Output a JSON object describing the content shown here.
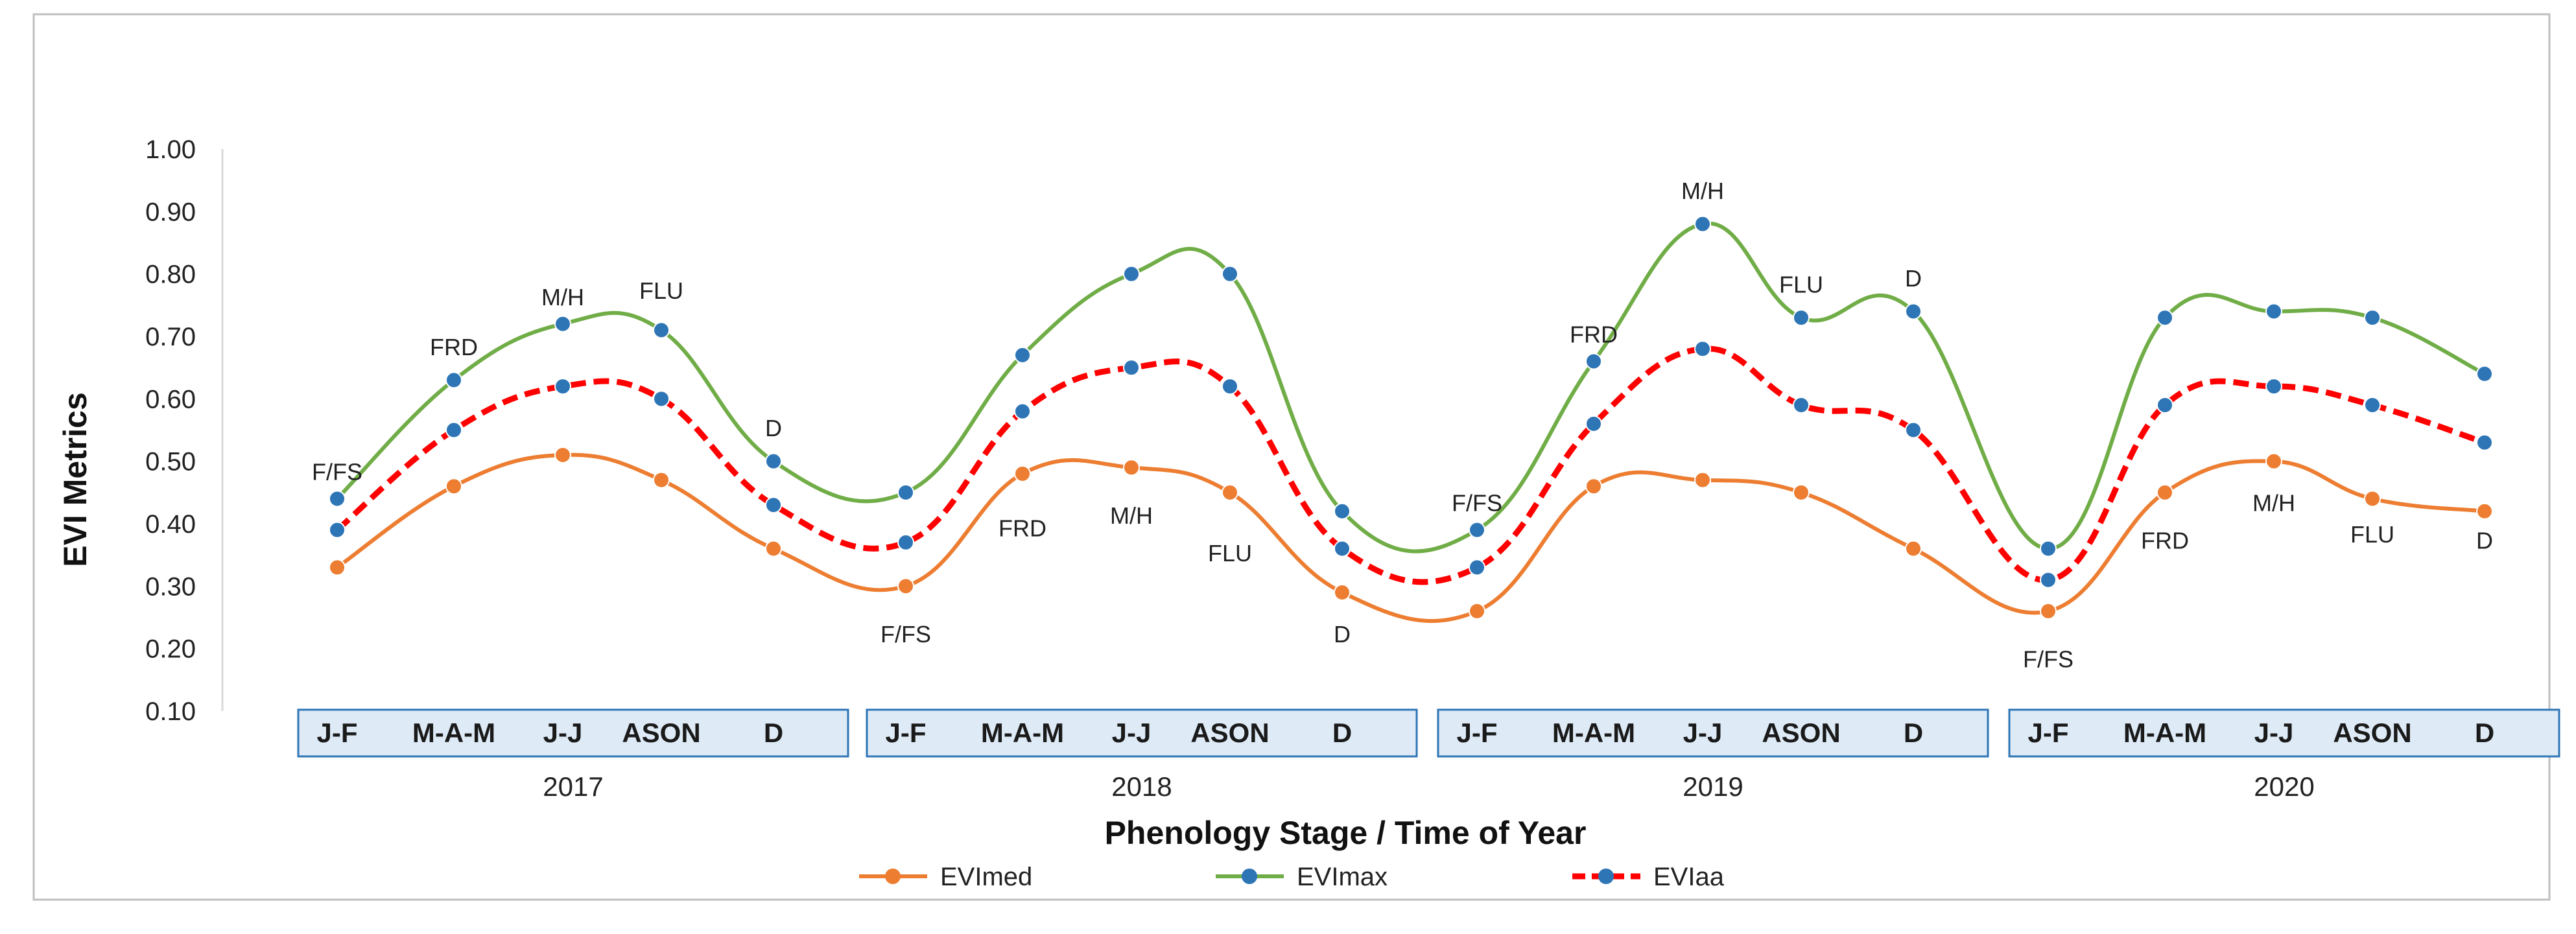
{
  "chart_data": {
    "type": "line",
    "title": "",
    "xlabel": "Phenology Stage / Time of Year",
    "ylabel": "EVI Metrics",
    "ylim": [
      0.1,
      1.0
    ],
    "yticks": [
      "0.10",
      "0.20",
      "0.30",
      "0.40",
      "0.50",
      "0.60",
      "0.70",
      "0.80",
      "0.90",
      "1.00"
    ],
    "grid": false,
    "legend_position": "bottom",
    "years": [
      {
        "year": "2017",
        "months": [
          "J-F",
          "M-A-M",
          "J-J",
          "ASON",
          "D"
        ]
      },
      {
        "year": "2018",
        "months": [
          "J-F",
          "M-A-M",
          "J-J",
          "ASON",
          "D"
        ]
      },
      {
        "year": "2019",
        "months": [
          "J-F",
          "M-A-M",
          "J-J",
          "ASON",
          "D"
        ]
      },
      {
        "year": "2020",
        "months": [
          "J-F",
          "M-A-M",
          "J-J",
          "ASON",
          "D"
        ]
      }
    ],
    "series": [
      {
        "name": "EVImed",
        "color": "#ED7D31",
        "style": "solid",
        "values": [
          0.33,
          0.46,
          0.51,
          0.47,
          0.36,
          0.3,
          0.48,
          0.49,
          0.45,
          0.29,
          0.26,
          0.46,
          0.47,
          0.45,
          0.36,
          0.26,
          0.45,
          0.5,
          0.44,
          0.42
        ]
      },
      {
        "name": "EVImax",
        "color": "#70AD47",
        "style": "solid",
        "values": [
          0.44,
          0.63,
          0.72,
          0.71,
          0.5,
          0.45,
          0.67,
          0.8,
          0.8,
          0.42,
          0.39,
          0.66,
          0.88,
          0.73,
          0.74,
          0.36,
          0.73,
          0.74,
          0.73,
          0.64
        ]
      },
      {
        "name": "EVIaa",
        "color": "#FF0000",
        "style": "dashed",
        "values": [
          0.39,
          0.55,
          0.62,
          0.6,
          0.43,
          0.37,
          0.58,
          0.65,
          0.62,
          0.36,
          0.33,
          0.56,
          0.68,
          0.59,
          0.55,
          0.31,
          0.59,
          0.62,
          0.59,
          0.53
        ]
      }
    ],
    "marker_color": "#2E75B6",
    "annotations": [
      {
        "text": "F/FS",
        "index": 0,
        "value": 0.47
      },
      {
        "text": "FRD",
        "index": 1,
        "value": 0.67
      },
      {
        "text": "M/H",
        "index": 2,
        "value": 0.75
      },
      {
        "text": "FLU",
        "index": 3,
        "value": 0.76
      },
      {
        "text": "D",
        "index": 4,
        "value": 0.54
      },
      {
        "text": "F/FS",
        "index": 5,
        "value": 0.21
      },
      {
        "text": "FRD",
        "index": 6,
        "value": 0.38
      },
      {
        "text": "M/H",
        "index": 7,
        "value": 0.4
      },
      {
        "text": "FLU",
        "index": 8,
        "value": 0.34
      },
      {
        "text": "D",
        "index": 9,
        "value": 0.21
      },
      {
        "text": "F/FS",
        "index": 10,
        "value": 0.42
      },
      {
        "text": "FRD",
        "index": 11,
        "value": 0.69
      },
      {
        "text": "M/H",
        "index": 12,
        "value": 0.92
      },
      {
        "text": "FLU",
        "index": 13,
        "value": 0.77
      },
      {
        "text": "D",
        "index": 14,
        "value": 0.78
      },
      {
        "text": "F/FS",
        "index": 15,
        "value": 0.17
      },
      {
        "text": "FRD",
        "index": 16,
        "value": 0.36
      },
      {
        "text": "M/H",
        "index": 17,
        "value": 0.42
      },
      {
        "text": "FLU",
        "index": 18,
        "value": 0.37
      },
      {
        "text": "D",
        "index": 19,
        "value": 0.36
      }
    ]
  }
}
